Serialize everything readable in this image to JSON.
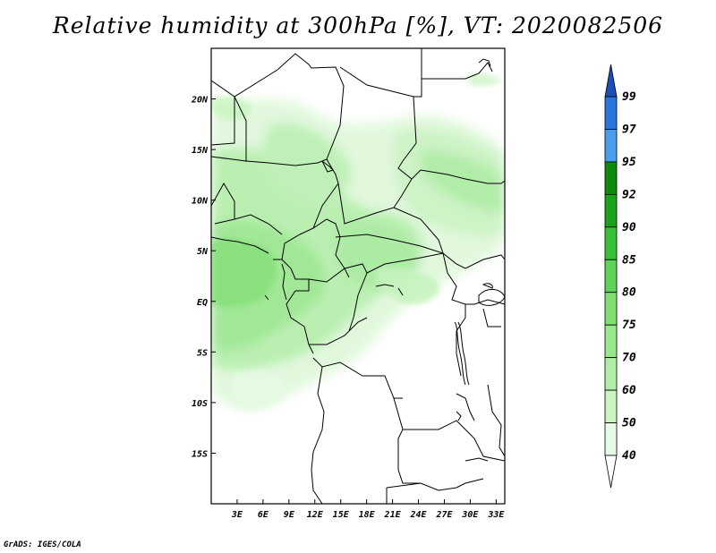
{
  "title": "Relative humidity at 300hPa [%], VT: 2020082506",
  "credit": "GrADS: IGES/COLA",
  "map": {
    "lon_range": [
      0,
      34
    ],
    "lat_range": [
      -20,
      25
    ],
    "lon_ticks": [
      {
        "value": 3,
        "label": "3E"
      },
      {
        "value": 6,
        "label": "6E"
      },
      {
        "value": 9,
        "label": "9E"
      },
      {
        "value": 12,
        "label": "12E"
      },
      {
        "value": 15,
        "label": "15E"
      },
      {
        "value": 18,
        "label": "18E"
      },
      {
        "value": 21,
        "label": "21E"
      },
      {
        "value": 24,
        "label": "24E"
      },
      {
        "value": 27,
        "label": "27E"
      },
      {
        "value": 30,
        "label": "30E"
      },
      {
        "value": 33,
        "label": "33E"
      }
    ],
    "lat_ticks": [
      {
        "value": 20,
        "label": "20N"
      },
      {
        "value": 15,
        "label": "15N"
      },
      {
        "value": 10,
        "label": "10N"
      },
      {
        "value": 5,
        "label": "5N"
      },
      {
        "value": 0,
        "label": "EQ"
      },
      {
        "value": -5,
        "label": "5S"
      },
      {
        "value": -10,
        "label": "10S"
      },
      {
        "value": -15,
        "label": "15S"
      }
    ]
  },
  "colorbar": {
    "levels": [
      40,
      50,
      60,
      70,
      75,
      80,
      85,
      90,
      92,
      95,
      97,
      99
    ],
    "colors": [
      "#ffffff",
      "#e6fbe3",
      "#c9f5c1",
      "#afeea5",
      "#96e88a",
      "#7fdf72",
      "#5fd25a",
      "#38bf38",
      "#1aa21a",
      "#0f8a0f",
      "#4a9ef0",
      "#2a74db",
      "#1b4fb8"
    ]
  }
}
